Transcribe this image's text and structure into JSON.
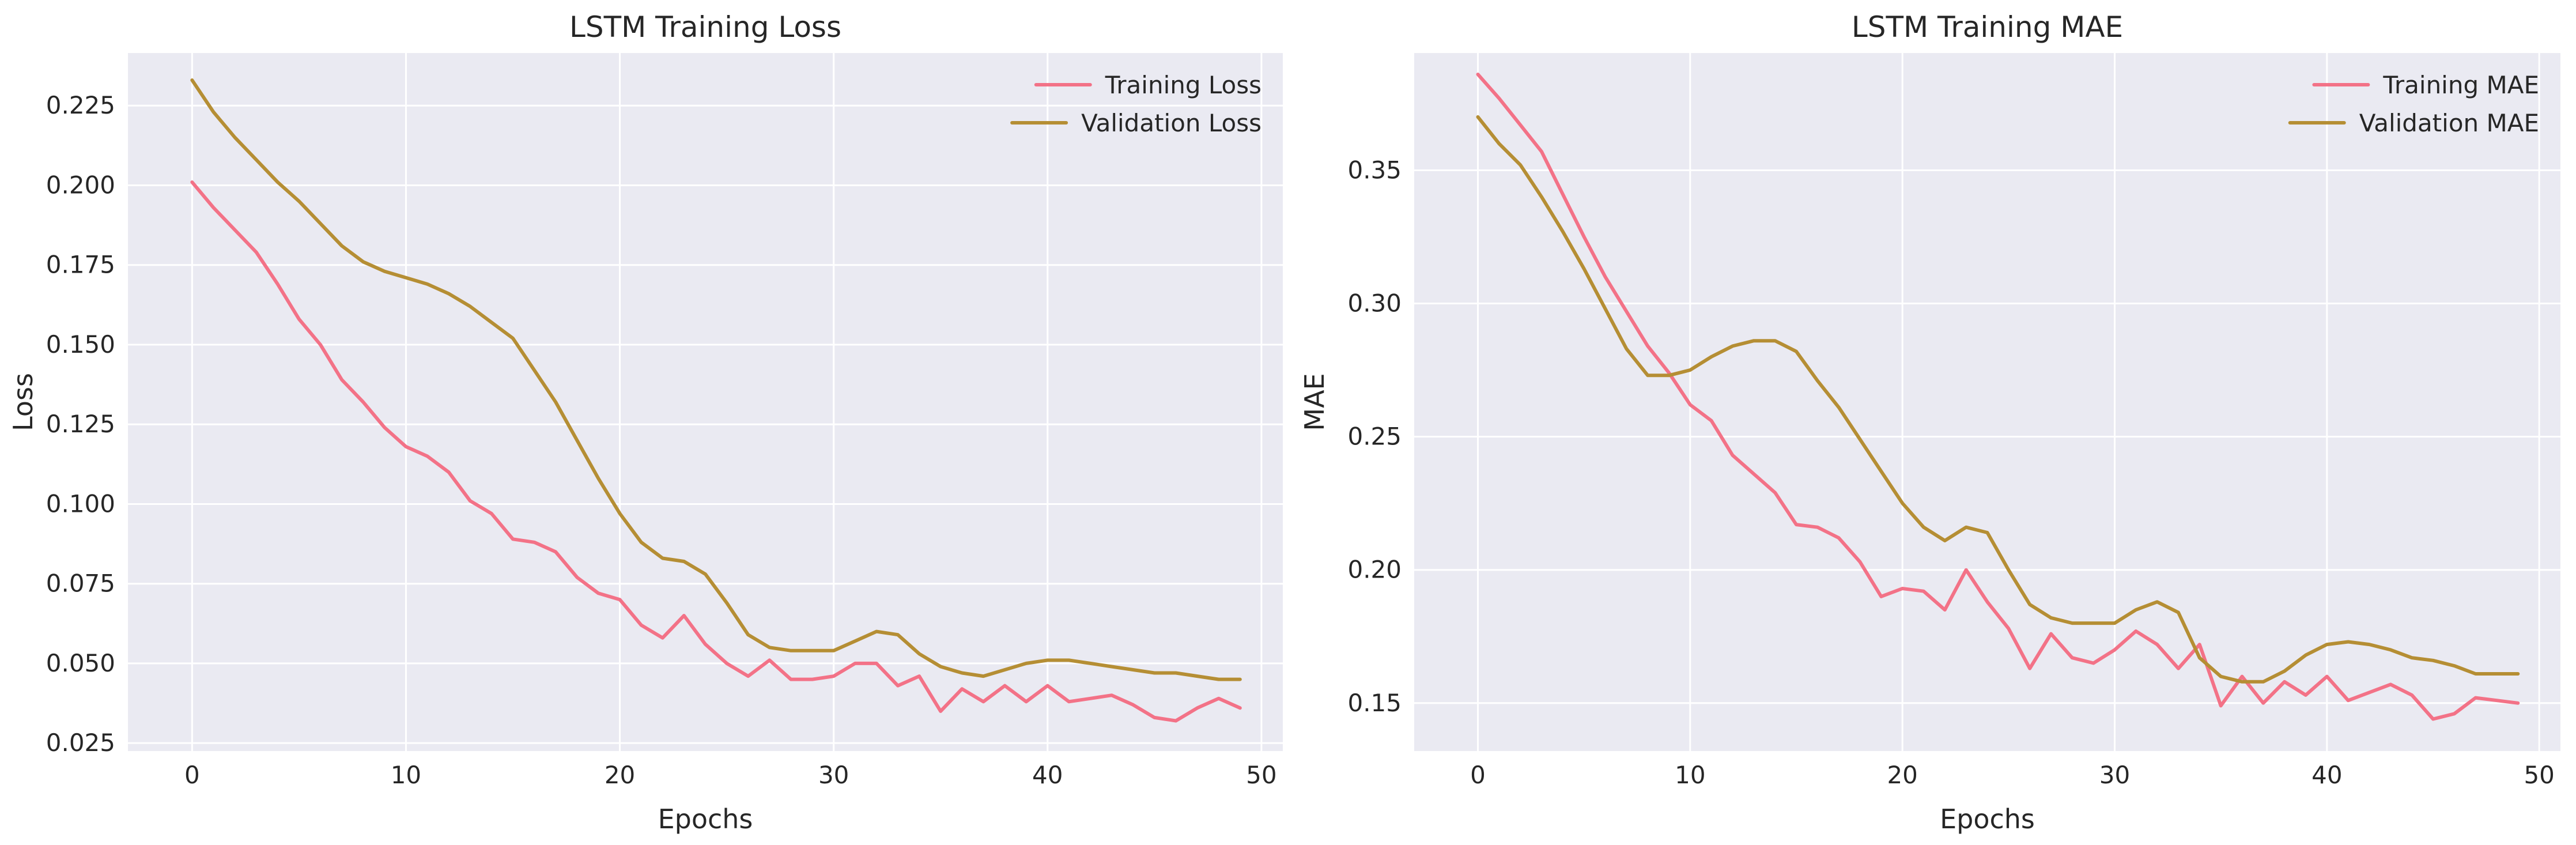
{
  "colors": {
    "background": "#eaeaf2",
    "grid": "#ffffff",
    "text": "#262626",
    "training": "#f37287",
    "validation": "#b58e34"
  },
  "chart_data": [
    {
      "type": "line",
      "title": "LSTM Training Loss",
      "xlabel": "Epochs",
      "ylabel": "Loss",
      "xlim": [
        -3,
        51
      ],
      "ylim": [
        0.0225,
        0.2415
      ],
      "xticks": [
        0,
        10,
        20,
        30,
        40,
        50
      ],
      "yticks": [
        0.025,
        0.05,
        0.075,
        0.1,
        0.125,
        0.15,
        0.175,
        0.2,
        0.225
      ],
      "ytick_labels": [
        "0.025",
        "0.050",
        "0.075",
        "0.100",
        "0.125",
        "0.150",
        "0.175",
        "0.200",
        "0.225"
      ],
      "grid": true,
      "legend_position": "top-right",
      "x": [
        0,
        1,
        2,
        3,
        4,
        5,
        6,
        7,
        8,
        9,
        10,
        11,
        12,
        13,
        14,
        15,
        16,
        17,
        18,
        19,
        20,
        21,
        22,
        23,
        24,
        25,
        26,
        27,
        28,
        29,
        30,
        31,
        32,
        33,
        34,
        35,
        36,
        37,
        38,
        39,
        40,
        41,
        42,
        43,
        44,
        45,
        46,
        47,
        48,
        49
      ],
      "series": [
        {
          "name": "Training Loss",
          "color": "#f37287",
          "values": [
            0.201,
            0.193,
            0.186,
            0.179,
            0.169,
            0.158,
            0.15,
            0.139,
            0.132,
            0.124,
            0.118,
            0.115,
            0.11,
            0.101,
            0.097,
            0.089,
            0.088,
            0.085,
            0.077,
            0.072,
            0.07,
            0.062,
            0.058,
            0.065,
            0.056,
            0.05,
            0.046,
            0.051,
            0.045,
            0.045,
            0.046,
            0.05,
            0.05,
            0.043,
            0.046,
            0.035,
            0.042,
            0.038,
            0.043,
            0.038,
            0.043,
            0.038,
            0.039,
            0.04,
            0.037,
            0.033,
            0.032,
            0.036,
            0.039,
            0.036
          ]
        },
        {
          "name": "Validation Loss",
          "color": "#b58e34",
          "values": [
            0.233,
            0.223,
            0.215,
            0.208,
            0.201,
            0.195,
            0.188,
            0.181,
            0.176,
            0.173,
            0.171,
            0.169,
            0.166,
            0.162,
            0.157,
            0.152,
            0.142,
            0.132,
            0.12,
            0.108,
            0.097,
            0.088,
            0.083,
            0.082,
            0.078,
            0.069,
            0.059,
            0.055,
            0.054,
            0.054,
            0.054,
            0.057,
            0.06,
            0.059,
            0.053,
            0.049,
            0.047,
            0.046,
            0.048,
            0.05,
            0.051,
            0.051,
            0.05,
            0.049,
            0.048,
            0.047,
            0.047,
            0.046,
            0.045,
            0.045
          ]
        }
      ]
    },
    {
      "type": "line",
      "title": "LSTM Training MAE",
      "xlabel": "Epochs",
      "ylabel": "MAE",
      "xlim": [
        -3,
        51
      ],
      "ylim": [
        0.132,
        0.394
      ],
      "xticks": [
        0,
        10,
        20,
        30,
        40,
        50
      ],
      "yticks": [
        0.15,
        0.2,
        0.25,
        0.3,
        0.35
      ],
      "ytick_labels": [
        "0.15",
        "0.20",
        "0.25",
        "0.30",
        "0.35"
      ],
      "grid": true,
      "legend_position": "top-right",
      "x": [
        0,
        1,
        2,
        3,
        4,
        5,
        6,
        7,
        8,
        9,
        10,
        11,
        12,
        13,
        14,
        15,
        16,
        17,
        18,
        19,
        20,
        21,
        22,
        23,
        24,
        25,
        26,
        27,
        28,
        29,
        30,
        31,
        32,
        33,
        34,
        35,
        36,
        37,
        38,
        39,
        40,
        41,
        42,
        43,
        44,
        45,
        46,
        47,
        48,
        49
      ],
      "series": [
        {
          "name": "Training MAE",
          "color": "#f37287",
          "values": [
            0.386,
            0.377,
            0.367,
            0.357,
            0.341,
            0.325,
            0.31,
            0.297,
            0.284,
            0.274,
            0.262,
            0.256,
            0.243,
            0.236,
            0.229,
            0.217,
            0.216,
            0.212,
            0.203,
            0.19,
            0.193,
            0.192,
            0.185,
            0.2,
            0.188,
            0.178,
            0.163,
            0.176,
            0.167,
            0.165,
            0.17,
            0.177,
            0.172,
            0.163,
            0.172,
            0.149,
            0.16,
            0.15,
            0.158,
            0.153,
            0.16,
            0.151,
            0.154,
            0.157,
            0.153,
            0.144,
            0.146,
            0.152,
            0.151,
            0.15
          ]
        },
        {
          "name": "Validation MAE",
          "color": "#b58e34",
          "values": [
            0.37,
            0.36,
            0.352,
            0.34,
            0.327,
            0.313,
            0.298,
            0.283,
            0.273,
            0.273,
            0.275,
            0.28,
            0.284,
            0.286,
            0.286,
            0.282,
            0.271,
            0.261,
            0.249,
            0.237,
            0.225,
            0.216,
            0.211,
            0.216,
            0.214,
            0.2,
            0.187,
            0.182,
            0.18,
            0.18,
            0.18,
            0.185,
            0.188,
            0.184,
            0.167,
            0.16,
            0.158,
            0.158,
            0.162,
            0.168,
            0.172,
            0.173,
            0.172,
            0.17,
            0.167,
            0.166,
            0.164,
            0.161,
            0.161,
            0.161
          ]
        }
      ]
    }
  ]
}
